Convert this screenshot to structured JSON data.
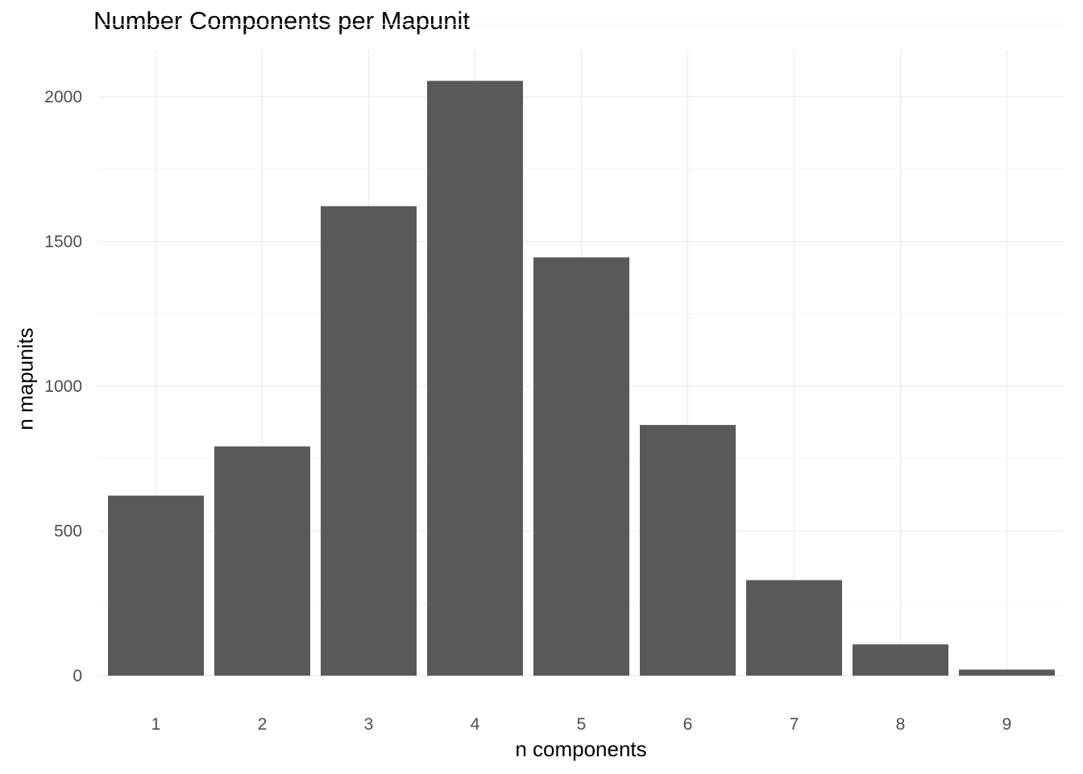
{
  "chart_data": {
    "type": "bar",
    "title": "Number Components per Mapunit",
    "xlabel": "n components",
    "ylabel": "n mapunits",
    "categories": [
      "1",
      "2",
      "3",
      "4",
      "5",
      "6",
      "7",
      "8",
      "9"
    ],
    "values": [
      622,
      792,
      1622,
      2055,
      1445,
      866,
      330,
      108,
      21
    ],
    "ylim": [
      0,
      2150
    ],
    "yticks": [
      0,
      500,
      1000,
      1500,
      2000
    ],
    "ytick_labels": [
      "0",
      "500",
      "1000",
      "1500",
      "2000"
    ],
    "grid": true,
    "legend": "none",
    "colors": {
      "bar": "#595959",
      "grid_major": "#ebebeb",
      "grid_minor": "#f3f3f3",
      "tick_text": "#4d4d4d"
    }
  }
}
